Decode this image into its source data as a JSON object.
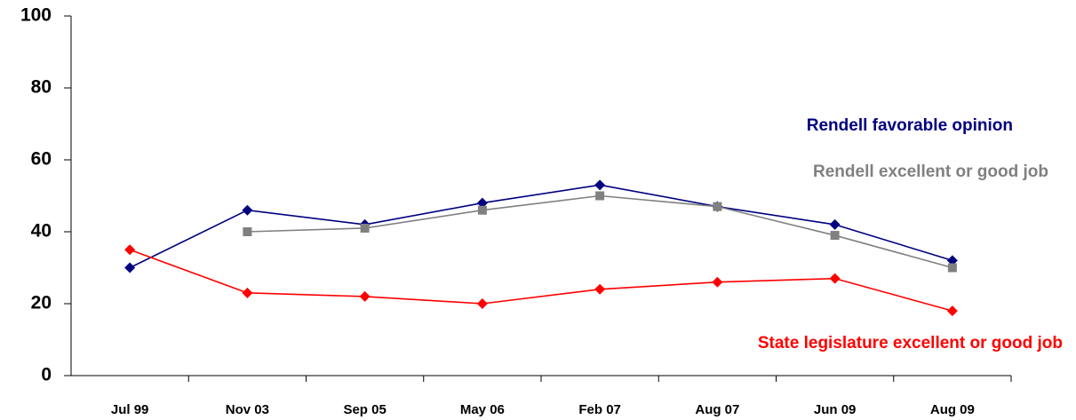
{
  "chart_data": {
    "type": "line",
    "categories": [
      "Jul 99",
      "Nov 03",
      "Sep 05",
      "May 06",
      "Feb 07",
      "Aug 07",
      "Jun 09",
      "Aug 09"
    ],
    "series": [
      {
        "name": "Rendell favorable opinion",
        "color": "#000080",
        "marker": "diamond",
        "values": [
          30,
          46,
          42,
          48,
          53,
          47,
          42,
          32
        ]
      },
      {
        "name": "Rendell excellent or good job",
        "color": "#808080",
        "marker": "square",
        "values": [
          null,
          40,
          41,
          46,
          50,
          47,
          39,
          30
        ]
      },
      {
        "name": "State legislature excellent or good job",
        "color": "#ff0000",
        "marker": "diamond",
        "values": [
          35,
          23,
          22,
          20,
          24,
          26,
          27,
          18
        ]
      }
    ],
    "ylim": [
      0,
      100
    ],
    "yticks": [
      0,
      20,
      40,
      60,
      80,
      100
    ]
  }
}
